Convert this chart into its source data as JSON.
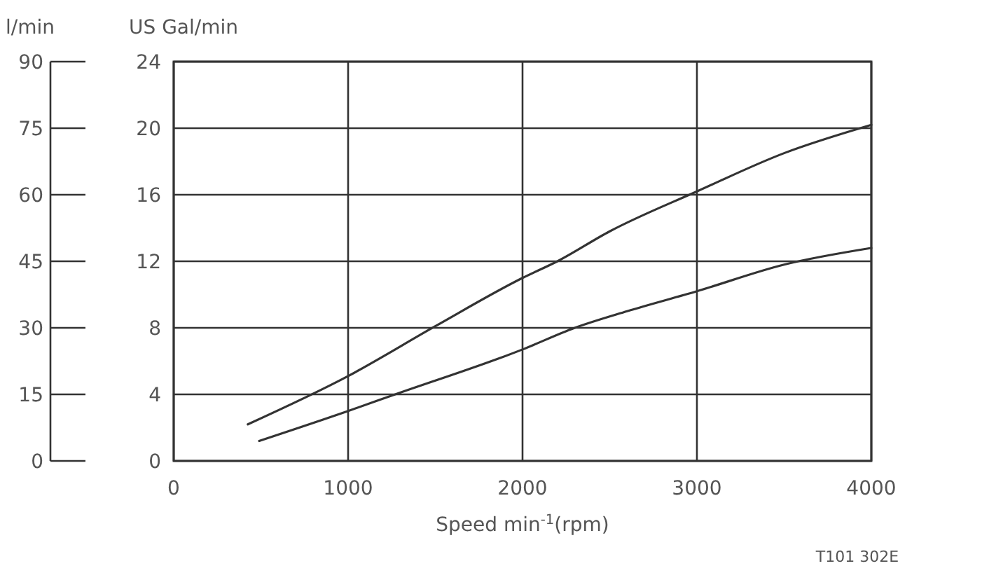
{
  "chart_data": {
    "type": "line",
    "xlabel": "Speed min$^{-1}$(rpm)",
    "ylabel": "US Gal/min",
    "y2label": "l/min",
    "series": [
      {
        "color": "#333333",
        "x": [
          425,
          1000,
          1500,
          2000,
          2200,
          2500,
          3000,
          3500,
          4000
        ],
        "values": [
          2.2,
          5.1,
          8.1,
          11,
          12,
          13.8,
          16.2,
          18.5,
          20.2
        ]
      },
      {
        "color": "#333333",
        "x": [
          490,
          1000,
          1270,
          2000,
          2300,
          2600,
          3000,
          3500,
          4000
        ],
        "values": [
          1.2,
          3,
          4,
          6.7,
          8,
          9,
          10.2,
          11.8,
          12.8
        ]
      }
    ],
    "xlim": [
      0,
      4000
    ],
    "xticks": [
      0,
      1000,
      2000,
      3000,
      4000
    ],
    "ylim": [
      0,
      24
    ],
    "yticks": [
      0,
      4,
      8,
      12,
      16,
      20,
      24
    ],
    "y2lim": [
      0,
      90
    ],
    "y2ticks": [
      0,
      15,
      30,
      45,
      60,
      75,
      90
    ],
    "grid": true,
    "marker": "none",
    "line_style": "solid",
    "annotations": [
      "T101 302E"
    ]
  }
}
